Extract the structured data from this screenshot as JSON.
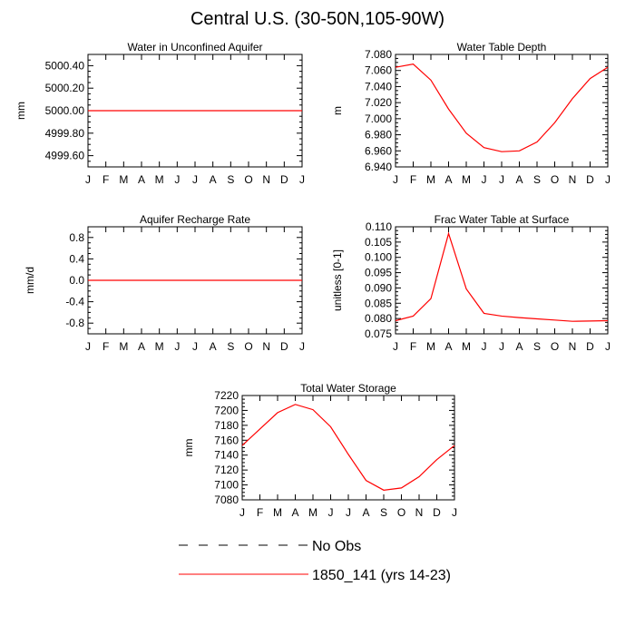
{
  "figure": {
    "title": "Central U.S. (30-50N,105-90W)",
    "line_color": "#ff0000"
  },
  "legend": {
    "items": [
      {
        "label": "No Obs",
        "style": "dashed",
        "color": "#000000"
      },
      {
        "label": "1850_141 (yrs 14-23)",
        "style": "solid",
        "color": "#ff0000"
      }
    ]
  },
  "chart_data": [
    {
      "type": "line",
      "title": "Water in Unconfined Aquifer",
      "xlabel": "",
      "ylabel": "mm",
      "x": [
        "J",
        "F",
        "M",
        "A",
        "M",
        "J",
        "J",
        "A",
        "S",
        "O",
        "N",
        "D",
        "J"
      ],
      "ylim": [
        4999.5,
        5000.5
      ],
      "yticks": [
        4999.6,
        4999.8,
        5000.0,
        5000.2,
        5000.4
      ],
      "ytick_labels": [
        "4999.60",
        "4999.80",
        "5000.00",
        "5000.20",
        "5000.40"
      ],
      "series": [
        {
          "name": "1850_141 (yrs 14-23)",
          "values": [
            5000,
            5000,
            5000,
            5000,
            5000,
            5000,
            5000,
            5000,
            5000,
            5000,
            5000,
            5000,
            5000
          ]
        }
      ]
    },
    {
      "type": "line",
      "title": "Water Table Depth",
      "xlabel": "",
      "ylabel": "m",
      "x": [
        "J",
        "F",
        "M",
        "A",
        "M",
        "J",
        "J",
        "A",
        "S",
        "O",
        "N",
        "D",
        "J"
      ],
      "ylim": [
        6.94,
        7.08
      ],
      "yticks": [
        6.94,
        6.96,
        6.98,
        7.0,
        7.02,
        7.04,
        7.06,
        7.08
      ],
      "ytick_labels": [
        "6.940",
        "6.960",
        "6.980",
        "7.000",
        "7.020",
        "7.040",
        "7.060",
        "7.080"
      ],
      "series": [
        {
          "name": "1850_141 (yrs 14-23)",
          "values": [
            7.064,
            7.068,
            7.048,
            7.012,
            6.982,
            6.964,
            6.959,
            6.96,
            6.971,
            6.995,
            7.025,
            7.05,
            7.064
          ]
        }
      ]
    },
    {
      "type": "line",
      "title": "Aquifer Recharge Rate",
      "xlabel": "",
      "ylabel": "mm/d",
      "x": [
        "J",
        "F",
        "M",
        "A",
        "M",
        "J",
        "J",
        "A",
        "S",
        "O",
        "N",
        "D",
        "J"
      ],
      "ylim": [
        -1.0,
        1.0
      ],
      "yticks": [
        -0.8,
        -0.4,
        0.0,
        0.4,
        0.8
      ],
      "ytick_labels": [
        "-0.8",
        "-0.4",
        "0.0",
        "0.4",
        "0.8"
      ],
      "series": [
        {
          "name": "1850_141 (yrs 14-23)",
          "values": [
            0,
            0,
            0,
            0,
            0,
            0,
            0,
            0,
            0,
            0,
            0,
            0,
            0
          ]
        }
      ]
    },
    {
      "type": "line",
      "title": "Frac Water Table at Surface",
      "xlabel": "",
      "ylabel": "unitless [0-1]",
      "x": [
        "J",
        "F",
        "M",
        "A",
        "M",
        "J",
        "J",
        "A",
        "S",
        "O",
        "N",
        "D",
        "J"
      ],
      "ylim": [
        0.075,
        0.11
      ],
      "yticks": [
        0.075,
        0.08,
        0.085,
        0.09,
        0.095,
        0.1,
        0.105,
        0.11
      ],
      "ytick_labels": [
        "0.075",
        "0.080",
        "0.085",
        "0.090",
        "0.095",
        "0.100",
        "0.105",
        "0.110"
      ],
      "series": [
        {
          "name": "1850_141 (yrs 14-23)",
          "values": [
            0.0793,
            0.0808,
            0.0865,
            0.1078,
            0.0897,
            0.0817,
            0.0808,
            0.0803,
            0.0799,
            0.0795,
            0.0791,
            0.0792,
            0.0793
          ]
        }
      ]
    },
    {
      "type": "line",
      "title": "Total Water Storage",
      "xlabel": "",
      "ylabel": "mm",
      "x": [
        "J",
        "F",
        "M",
        "A",
        "M",
        "J",
        "J",
        "A",
        "S",
        "O",
        "N",
        "D",
        "J"
      ],
      "ylim": [
        7080,
        7220
      ],
      "yticks": [
        7080,
        7100,
        7120,
        7140,
        7160,
        7180,
        7200,
        7220
      ],
      "ytick_labels": [
        "7080",
        "7100",
        "7120",
        "7140",
        "7160",
        "7180",
        "7200",
        "7220"
      ],
      "series": [
        {
          "name": "1850_141 (yrs 14-23)",
          "values": [
            7153,
            7175,
            7197,
            7208,
            7201,
            7178,
            7141,
            7106,
            7093,
            7096,
            7111,
            7134,
            7153
          ]
        }
      ]
    }
  ]
}
